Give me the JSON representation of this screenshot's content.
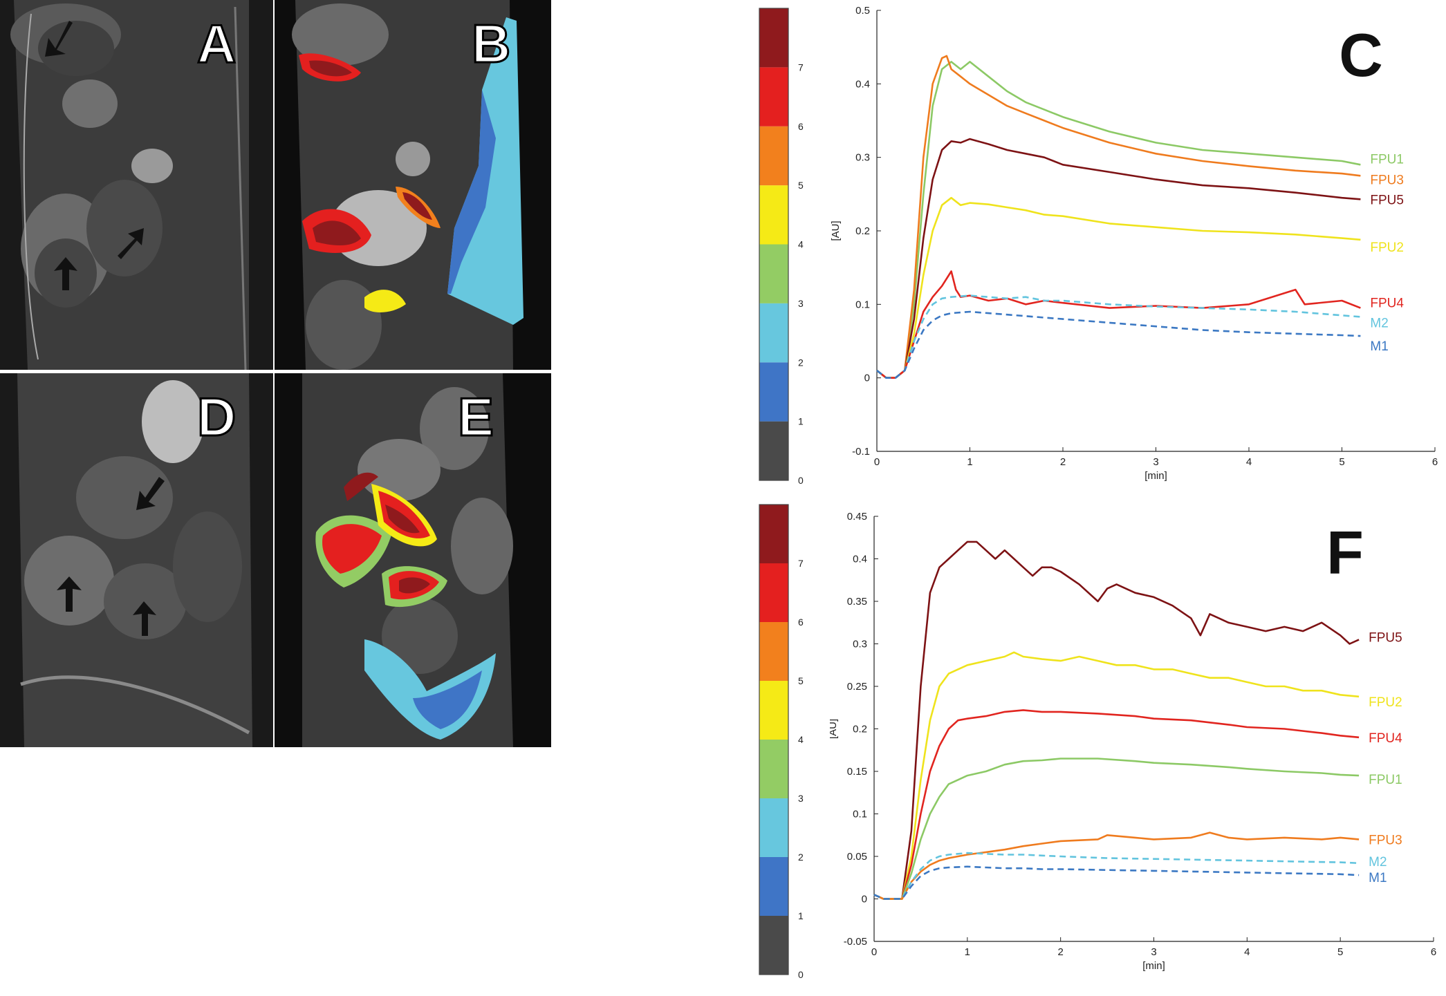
{
  "figure": {
    "panels": {
      "A": "A",
      "B": "B",
      "C": "C",
      "D": "D",
      "E": "E",
      "F": "F"
    },
    "colorbar": {
      "ticks": [
        "0",
        "1",
        "2",
        "3",
        "4",
        "5",
        "6",
        "7"
      ],
      "colors": [
        "#4a4a4a",
        "#3f75c6",
        "#67c7de",
        "#93cc64",
        "#f5ea16",
        "#f2801d",
        "#e4201f",
        "#8f1a1d"
      ]
    },
    "colors": {
      "FPU1": "#8cc965",
      "FPU2": "#efe31c",
      "FPU3": "#ef7b1e",
      "FPU4": "#e1251f",
      "FPU5": "#7d1214",
      "M1": "#3b78c3",
      "M2": "#62c4de"
    }
  },
  "chart_data": [
    {
      "panel": "C",
      "type": "line",
      "title": "C",
      "xlabel": "[min]",
      "ylabel": "[AU]",
      "xlim": [
        0,
        6
      ],
      "ylim": [
        -0.1,
        0.5
      ],
      "xticks": [
        "0",
        "1",
        "2",
        "3",
        "4",
        "5",
        "6"
      ],
      "yticks": [
        "-0.1",
        "0",
        "0.1",
        "0.2",
        "0.3",
        "0.4",
        "0.5"
      ],
      "series": [
        {
          "name": "FPU1",
          "dashed": false,
          "x": [
            0,
            0.1,
            0.2,
            0.3,
            0.4,
            0.5,
            0.6,
            0.7,
            0.8,
            0.9,
            1.0,
            1.2,
            1.4,
            1.6,
            1.8,
            2.0,
            2.5,
            3.0,
            3.5,
            4.0,
            4.5,
            5.0,
            5.2
          ],
          "values": [
            0.01,
            0.0,
            0.0,
            0.01,
            0.1,
            0.25,
            0.37,
            0.42,
            0.43,
            0.42,
            0.43,
            0.41,
            0.39,
            0.375,
            0.365,
            0.355,
            0.335,
            0.32,
            0.31,
            0.305,
            0.3,
            0.295,
            0.29
          ]
        },
        {
          "name": "FPU3",
          "dashed": false,
          "x": [
            0,
            0.1,
            0.2,
            0.3,
            0.4,
            0.5,
            0.6,
            0.7,
            0.75,
            0.8,
            0.9,
            1.0,
            1.2,
            1.4,
            1.6,
            1.8,
            2.0,
            2.5,
            3.0,
            3.5,
            4.0,
            4.5,
            5.0,
            5.2
          ],
          "values": [
            0.01,
            0.0,
            0.0,
            0.01,
            0.12,
            0.3,
            0.4,
            0.435,
            0.438,
            0.42,
            0.41,
            0.4,
            0.385,
            0.37,
            0.36,
            0.35,
            0.34,
            0.32,
            0.305,
            0.295,
            0.288,
            0.282,
            0.278,
            0.275
          ]
        },
        {
          "name": "FPU5",
          "dashed": false,
          "x": [
            0,
            0.1,
            0.2,
            0.3,
            0.4,
            0.5,
            0.6,
            0.7,
            0.8,
            0.9,
            1.0,
            1.2,
            1.4,
            1.6,
            1.8,
            2.0,
            2.5,
            3.0,
            3.5,
            4.0,
            4.5,
            5.0,
            5.2
          ],
          "values": [
            0.01,
            0.0,
            0.0,
            0.01,
            0.08,
            0.19,
            0.27,
            0.31,
            0.322,
            0.32,
            0.325,
            0.318,
            0.31,
            0.305,
            0.3,
            0.29,
            0.28,
            0.27,
            0.262,
            0.258,
            0.252,
            0.245,
            0.243
          ]
        },
        {
          "name": "FPU2",
          "dashed": false,
          "x": [
            0,
            0.1,
            0.2,
            0.3,
            0.4,
            0.5,
            0.6,
            0.7,
            0.8,
            0.9,
            1.0,
            1.2,
            1.4,
            1.6,
            1.8,
            2.0,
            2.5,
            3.0,
            3.5,
            4.0,
            4.5,
            5.0,
            5.2
          ],
          "values": [
            0.01,
            0.0,
            0.0,
            0.01,
            0.06,
            0.14,
            0.2,
            0.235,
            0.245,
            0.235,
            0.238,
            0.236,
            0.232,
            0.228,
            0.222,
            0.22,
            0.21,
            0.205,
            0.2,
            0.198,
            0.195,
            0.19,
            0.188
          ]
        },
        {
          "name": "FPU4",
          "dashed": false,
          "x": [
            0,
            0.1,
            0.2,
            0.3,
            0.4,
            0.5,
            0.6,
            0.7,
            0.8,
            0.85,
            0.9,
            1.0,
            1.2,
            1.4,
            1.6,
            1.8,
            2.0,
            2.5,
            3.0,
            3.5,
            4.0,
            4.5,
            4.6,
            5.0,
            5.2
          ],
          "values": [
            0.01,
            0.0,
            0.0,
            0.01,
            0.05,
            0.09,
            0.11,
            0.125,
            0.145,
            0.12,
            0.11,
            0.112,
            0.105,
            0.108,
            0.1,
            0.105,
            0.102,
            0.095,
            0.098,
            0.095,
            0.1,
            0.12,
            0.1,
            0.105,
            0.095
          ]
        },
        {
          "name": "M2",
          "dashed": true,
          "x": [
            0,
            0.1,
            0.2,
            0.3,
            0.4,
            0.5,
            0.6,
            0.7,
            0.8,
            1.0,
            1.2,
            1.4,
            1.6,
            1.8,
            2.0,
            2.5,
            3.0,
            3.5,
            4.0,
            4.5,
            5.0,
            5.2
          ],
          "values": [
            0.01,
            0.0,
            0.0,
            0.01,
            0.05,
            0.08,
            0.1,
            0.108,
            0.11,
            0.112,
            0.11,
            0.108,
            0.11,
            0.105,
            0.105,
            0.1,
            0.097,
            0.095,
            0.093,
            0.09,
            0.085,
            0.083
          ]
        },
        {
          "name": "M1",
          "dashed": true,
          "x": [
            0,
            0.1,
            0.2,
            0.3,
            0.4,
            0.5,
            0.6,
            0.7,
            0.8,
            1.0,
            1.2,
            1.4,
            1.6,
            1.8,
            2.0,
            2.5,
            3.0,
            3.5,
            4.0,
            4.5,
            5.0,
            5.2
          ],
          "values": [
            0.01,
            0.0,
            0.0,
            0.01,
            0.04,
            0.065,
            0.078,
            0.085,
            0.088,
            0.09,
            0.088,
            0.086,
            0.084,
            0.082,
            0.08,
            0.075,
            0.07,
            0.065,
            0.062,
            0.06,
            0.058,
            0.057
          ]
        }
      ]
    },
    {
      "panel": "F",
      "type": "line",
      "title": "F",
      "xlabel": "[min]",
      "ylabel": "[AU]",
      "xlim": [
        0,
        6
      ],
      "ylim": [
        -0.05,
        0.45
      ],
      "xticks": [
        "0",
        "1",
        "2",
        "3",
        "4",
        "5",
        "6"
      ],
      "yticks": [
        "-0.05",
        "0",
        "0.05",
        "0.1",
        "0.15",
        "0.2",
        "0.25",
        "0.3",
        "0.35",
        "0.4",
        "0.45"
      ],
      "series": [
        {
          "name": "FPU5",
          "dashed": false,
          "x": [
            0,
            0.1,
            0.2,
            0.3,
            0.4,
            0.5,
            0.6,
            0.7,
            0.8,
            0.9,
            1.0,
            1.1,
            1.2,
            1.3,
            1.4,
            1.5,
            1.6,
            1.7,
            1.8,
            1.9,
            2.0,
            2.2,
            2.4,
            2.5,
            2.6,
            2.8,
            3.0,
            3.2,
            3.4,
            3.5,
            3.6,
            3.7,
            3.8,
            4.0,
            4.2,
            4.4,
            4.6,
            4.8,
            5.0,
            5.1,
            5.2
          ],
          "values": [
            0.005,
            0.0,
            0.0,
            0.0,
            0.08,
            0.25,
            0.36,
            0.39,
            0.4,
            0.41,
            0.42,
            0.42,
            0.41,
            0.4,
            0.41,
            0.4,
            0.39,
            0.38,
            0.39,
            0.39,
            0.385,
            0.37,
            0.35,
            0.365,
            0.37,
            0.36,
            0.355,
            0.345,
            0.33,
            0.31,
            0.335,
            0.33,
            0.325,
            0.32,
            0.315,
            0.32,
            0.315,
            0.325,
            0.31,
            0.3,
            0.305
          ]
        },
        {
          "name": "FPU2",
          "dashed": false,
          "x": [
            0,
            0.1,
            0.2,
            0.3,
            0.4,
            0.5,
            0.6,
            0.7,
            0.8,
            0.9,
            1.0,
            1.2,
            1.4,
            1.5,
            1.6,
            1.8,
            2.0,
            2.2,
            2.4,
            2.6,
            2.8,
            3.0,
            3.2,
            3.4,
            3.6,
            3.8,
            4.0,
            4.2,
            4.4,
            4.6,
            4.8,
            5.0,
            5.2
          ],
          "values": [
            0.005,
            0.0,
            0.0,
            0.0,
            0.05,
            0.14,
            0.21,
            0.25,
            0.265,
            0.27,
            0.275,
            0.28,
            0.285,
            0.29,
            0.285,
            0.282,
            0.28,
            0.285,
            0.28,
            0.275,
            0.275,
            0.27,
            0.27,
            0.265,
            0.26,
            0.26,
            0.255,
            0.25,
            0.25,
            0.245,
            0.245,
            0.24,
            0.238
          ]
        },
        {
          "name": "FPU4",
          "dashed": false,
          "x": [
            0,
            0.1,
            0.2,
            0.3,
            0.4,
            0.5,
            0.6,
            0.7,
            0.8,
            0.9,
            1.0,
            1.2,
            1.4,
            1.6,
            1.8,
            2.0,
            2.4,
            2.8,
            3.0,
            3.4,
            3.8,
            4.0,
            4.4,
            4.8,
            5.0,
            5.2
          ],
          "values": [
            0.005,
            0.0,
            0.0,
            0.0,
            0.04,
            0.1,
            0.15,
            0.18,
            0.2,
            0.21,
            0.212,
            0.215,
            0.22,
            0.222,
            0.22,
            0.22,
            0.218,
            0.215,
            0.212,
            0.21,
            0.205,
            0.202,
            0.2,
            0.195,
            0.192,
            0.19
          ]
        },
        {
          "name": "FPU1",
          "dashed": false,
          "x": [
            0,
            0.1,
            0.2,
            0.3,
            0.4,
            0.5,
            0.6,
            0.7,
            0.8,
            0.9,
            1.0,
            1.2,
            1.4,
            1.6,
            1.8,
            2.0,
            2.4,
            2.8,
            3.0,
            3.4,
            3.8,
            4.0,
            4.4,
            4.8,
            5.0,
            5.2
          ],
          "values": [
            0.005,
            0.0,
            0.0,
            0.0,
            0.03,
            0.07,
            0.1,
            0.12,
            0.135,
            0.14,
            0.145,
            0.15,
            0.158,
            0.162,
            0.163,
            0.165,
            0.165,
            0.162,
            0.16,
            0.158,
            0.155,
            0.153,
            0.15,
            0.148,
            0.146,
            0.145
          ]
        },
        {
          "name": "FPU3",
          "dashed": false,
          "x": [
            0,
            0.1,
            0.2,
            0.3,
            0.4,
            0.5,
            0.6,
            0.7,
            0.8,
            0.9,
            1.0,
            1.2,
            1.4,
            1.6,
            1.8,
            2.0,
            2.4,
            2.5,
            2.8,
            3.0,
            3.4,
            3.6,
            3.8,
            4.0,
            4.4,
            4.8,
            5.0,
            5.2
          ],
          "values": [
            0.005,
            0.0,
            0.0,
            0.0,
            0.02,
            0.032,
            0.04,
            0.045,
            0.048,
            0.05,
            0.052,
            0.055,
            0.058,
            0.062,
            0.065,
            0.068,
            0.07,
            0.075,
            0.072,
            0.07,
            0.072,
            0.078,
            0.072,
            0.07,
            0.072,
            0.07,
            0.072,
            0.07
          ]
        },
        {
          "name": "M2",
          "dashed": true,
          "x": [
            0,
            0.1,
            0.2,
            0.3,
            0.4,
            0.5,
            0.6,
            0.7,
            0.8,
            1.0,
            1.2,
            1.4,
            1.6,
            1.8,
            2.0,
            2.5,
            3.0,
            3.5,
            4.0,
            4.5,
            5.0,
            5.2
          ],
          "values": [
            0.005,
            0.0,
            0.0,
            0.0,
            0.02,
            0.035,
            0.045,
            0.05,
            0.052,
            0.054,
            0.053,
            0.052,
            0.052,
            0.051,
            0.05,
            0.048,
            0.047,
            0.046,
            0.045,
            0.044,
            0.043,
            0.042
          ]
        },
        {
          "name": "M1",
          "dashed": true,
          "x": [
            0,
            0.1,
            0.2,
            0.3,
            0.4,
            0.5,
            0.6,
            0.7,
            0.8,
            1.0,
            1.2,
            1.4,
            1.6,
            1.8,
            2.0,
            2.5,
            3.0,
            3.5,
            4.0,
            4.5,
            5.0,
            5.2
          ],
          "values": [
            0.005,
            0.0,
            0.0,
            0.0,
            0.015,
            0.027,
            0.033,
            0.036,
            0.037,
            0.038,
            0.037,
            0.036,
            0.036,
            0.035,
            0.035,
            0.034,
            0.033,
            0.032,
            0.031,
            0.03,
            0.029,
            0.028
          ]
        }
      ]
    }
  ]
}
